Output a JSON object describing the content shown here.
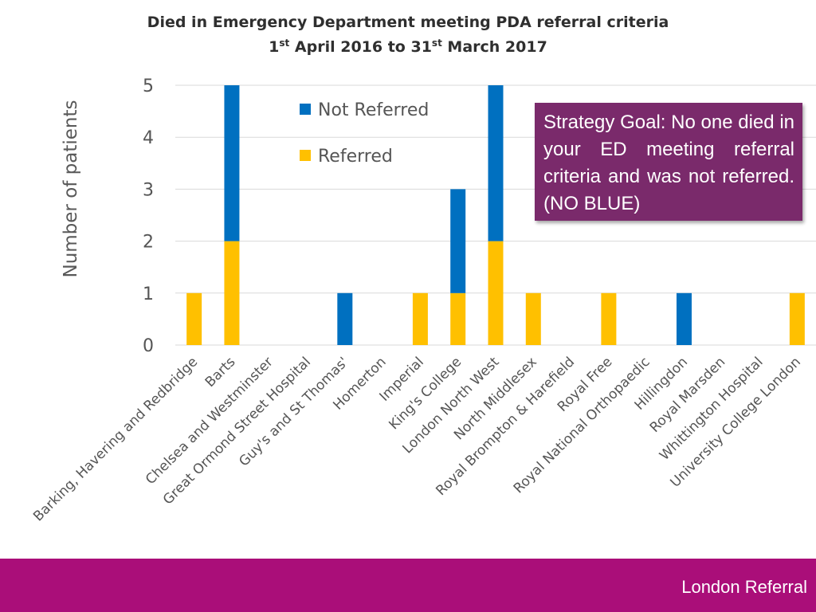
{
  "chart_data": {
    "type": "bar",
    "stacked": true,
    "title_line1": "Died in Emergency Department meeting PDA referral criteria",
    "title_line2": {
      "pre": "1",
      "sup1": "st",
      "mid": " April 2016 to 31",
      "sup2": "st",
      "post": " March 2017"
    },
    "ylabel": "Number of patients",
    "xlabel": "",
    "ylim": [
      0,
      5
    ],
    "yticks": [
      "0",
      "1",
      "2",
      "3",
      "4",
      "5"
    ],
    "grid": true,
    "legend_position": "top-center",
    "categories": [
      "Barking, Havering and Redbridge",
      "Barts",
      "Chelsea and Westminster",
      "Great Ormond Street Hospital",
      "Guy's and St Thomas'",
      "Homerton",
      "Imperial",
      "King's College",
      "London North West",
      "North Middlesex",
      "Royal Brompton & Harefield",
      "Royal Free",
      "Royal National Orthopaedic",
      "Hillingdon",
      "Royal Marsden",
      "Whittington Hospital",
      "University College London"
    ],
    "series": [
      {
        "name": "Referred",
        "color": "#ffc000",
        "values": [
          1,
          2,
          0,
          0,
          0,
          0,
          1,
          1,
          2,
          1,
          0,
          1,
          0,
          0,
          0,
          0,
          1
        ]
      },
      {
        "name": "Not Referred",
        "color": "#0070c0",
        "values": [
          0,
          3,
          0,
          0,
          1,
          0,
          0,
          2,
          3,
          0,
          0,
          0,
          0,
          1,
          0,
          0,
          0
        ]
      }
    ],
    "legend_order": [
      "Not Referred",
      "Referred"
    ]
  },
  "callout": {
    "text": "Strategy Goal: No one died in your ED meeting referral criteria and was not referred. (NO BLUE)"
  },
  "footer": {
    "label": "London Referral"
  },
  "colors": {
    "footer_bar": "#aa0e79",
    "callout_bg": "#7a2a6b",
    "gridline": "#d9d9d9"
  }
}
